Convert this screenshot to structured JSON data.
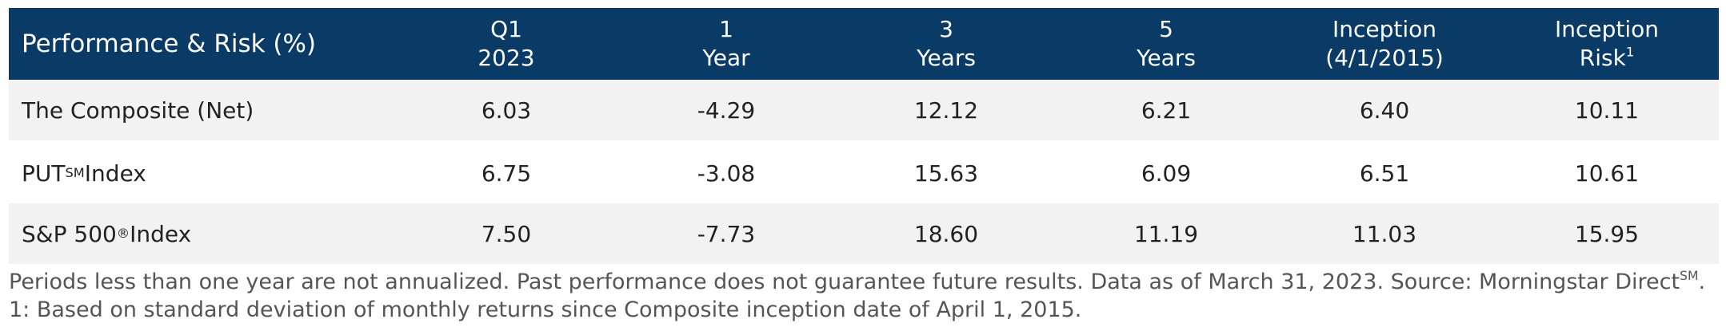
{
  "table": {
    "header": {
      "title": "Performance & Risk (%)",
      "columns": [
        {
          "lines": [
            "Q1",
            "2023"
          ]
        },
        {
          "lines": [
            "1",
            "Year"
          ]
        },
        {
          "lines": [
            "3",
            "Years"
          ]
        },
        {
          "lines": [
            "5",
            "Years"
          ]
        },
        {
          "lines": [
            "Inception",
            "(4/1/2015)"
          ]
        },
        {
          "lines": [
            "Inception",
            "Risk"
          ],
          "sup": "1"
        }
      ]
    },
    "rows": [
      {
        "label": {
          "text": "The Composite (Net)"
        },
        "values": [
          "6.03",
          "-4.29",
          "12.12",
          "6.21",
          "6.40",
          "10.11"
        ]
      },
      {
        "label": {
          "text": "PUT",
          "sup": "SM",
          "rest": " Index"
        },
        "values": [
          "6.75",
          "-3.08",
          "15.63",
          "6.09",
          "6.51",
          "10.61"
        ]
      },
      {
        "label": {
          "text": "S&P 500",
          "sup": "®",
          "rest": " Index"
        },
        "values": [
          "7.50",
          "-7.73",
          "18.60",
          "11.19",
          "11.03",
          "15.95"
        ]
      }
    ]
  },
  "notes": [
    {
      "text": "Periods less than one year are not annualized. Past performance does not guarantee future results. Data as of March 31, 2023. Source: Morningstar Direct",
      "sup": "SM",
      "rest": "."
    },
    {
      "text": "1: Based on standard deviation of monthly returns since Composite inception date of April 1, 2015."
    }
  ]
}
